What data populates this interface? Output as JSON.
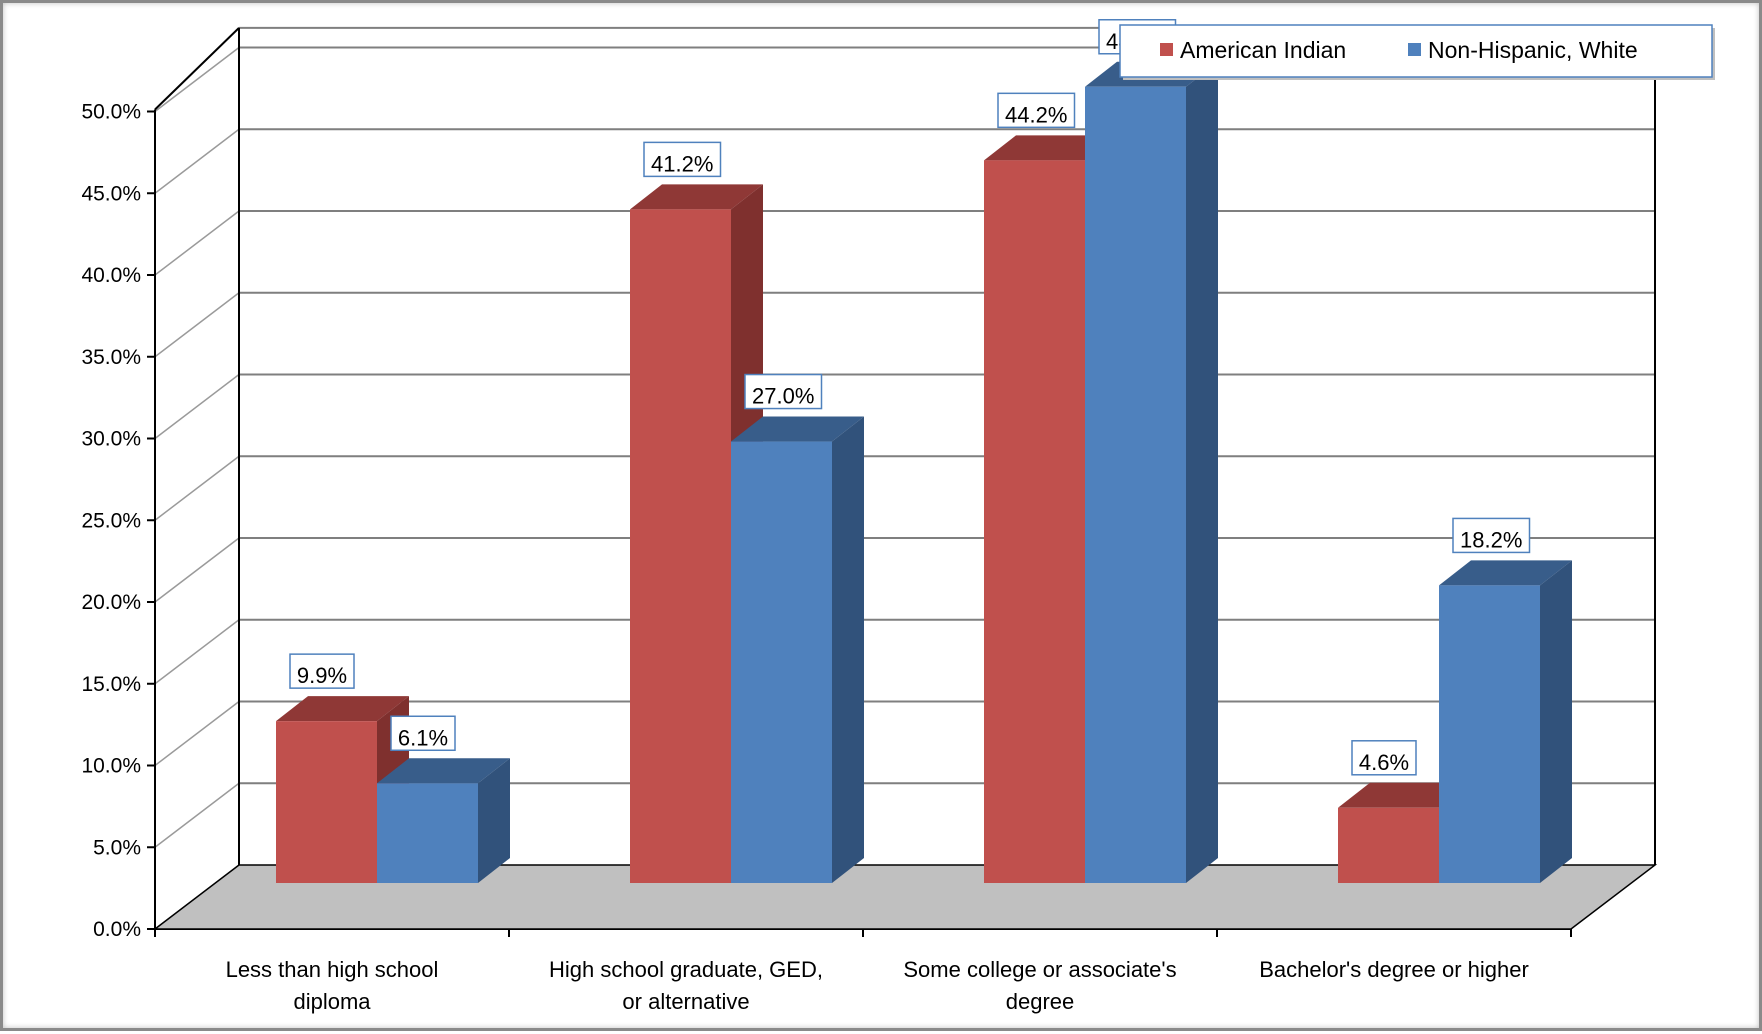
{
  "chart_data": {
    "type": "bar",
    "categories": [
      [
        "Less than high school",
        "diploma"
      ],
      [
        "High school graduate, GED,",
        "or alternative"
      ],
      [
        "Some college or associate's",
        "degree"
      ],
      [
        "Bachelor's degree or higher"
      ]
    ],
    "series": [
      {
        "name": "American Indian",
        "values": [
          9.9,
          41.2,
          44.2,
          4.6
        ],
        "labels": [
          "9.9%",
          "41.2%",
          "44.2%",
          "4.6%"
        ],
        "color": "#c0504d",
        "side_color": "#7f302e",
        "top_color": "#8f3836"
      },
      {
        "name": "Non-Hispanic, White",
        "values": [
          6.1,
          27.0,
          48.7,
          18.2
        ],
        "labels": [
          "6.1%",
          "27.0%",
          "48.7%",
          "18.2%"
        ],
        "color": "#4f81bd",
        "side_color": "#31527b",
        "top_color": "#385d8a"
      }
    ],
    "y_ticks": [
      "0.0%",
      "5.0%",
      "10.0%",
      "15.0%",
      "20.0%",
      "25.0%",
      "30.0%",
      "35.0%",
      "40.0%",
      "45.0%",
      "50.0%"
    ],
    "ylim": [
      0,
      50
    ],
    "grid": true,
    "legend_position": "top-right",
    "floor_color": "#c0c0c0",
    "title": "",
    "xlabel": "",
    "ylabel": ""
  }
}
